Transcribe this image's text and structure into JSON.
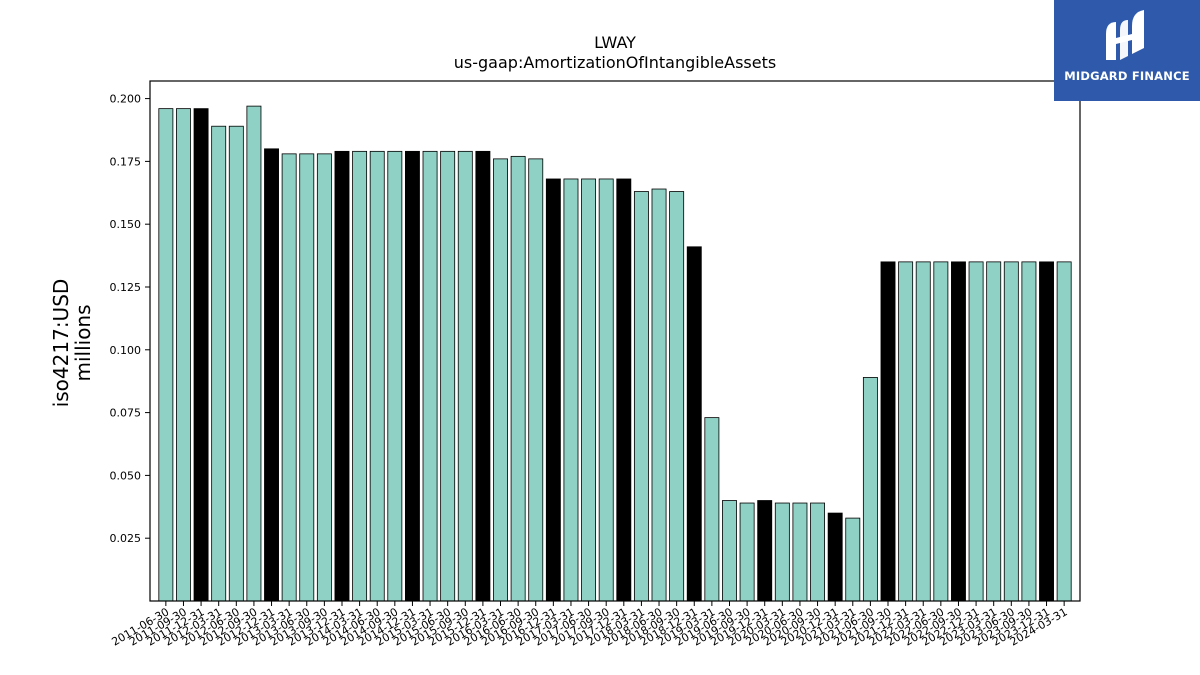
{
  "brand": {
    "name": "MIDGARD FINANCE",
    "background": "#2f5aab"
  },
  "chart_data": {
    "type": "bar",
    "title": "LWAY",
    "subtitle": "us-gaap:AmortizationOfIntangibleAssets",
    "ylabel_line1": "iso4217:USD",
    "ylabel_line2": "millions",
    "xlabel": "",
    "ylim": [
      0,
      0.207
    ],
    "yticks": [
      0.025,
      0.05,
      0.075,
      0.1,
      0.125,
      0.15,
      0.175,
      0.2
    ],
    "grid": false,
    "legend": "none",
    "colors": {
      "default": "#8fd1c4",
      "highlight": "#000000",
      "edge": "#000000"
    },
    "categories": [
      "2011-06-30",
      "2011-09-30",
      "2011-12-31",
      "2012-03-31",
      "2012-06-30",
      "2012-09-30",
      "2012-12-31",
      "2013-03-31",
      "2013-06-30",
      "2013-09-30",
      "2013-12-31",
      "2014-03-31",
      "2014-06-30",
      "2014-09-30",
      "2014-12-31",
      "2015-03-31",
      "2015-06-30",
      "2015-09-30",
      "2015-12-31",
      "2016-03-31",
      "2016-06-30",
      "2016-09-30",
      "2016-12-31",
      "2017-03-31",
      "2017-06-30",
      "2017-09-30",
      "2017-12-31",
      "2018-03-31",
      "2018-06-30",
      "2018-09-30",
      "2018-12-31",
      "2019-03-31",
      "2019-06-30",
      "2019-09-30",
      "2019-12-31",
      "2020-03-31",
      "2020-06-30",
      "2020-09-30",
      "2020-12-31",
      "2021-03-31",
      "2021-06-30",
      "2021-09-30",
      "2021-12-31",
      "2022-03-31",
      "2022-06-30",
      "2022-09-30",
      "2022-12-31",
      "2023-03-31",
      "2023-06-30",
      "2023-09-30",
      "2023-12-31",
      "2024-03-31"
    ],
    "values": [
      0.196,
      0.196,
      0.196,
      0.189,
      0.189,
      0.197,
      0.18,
      0.178,
      0.178,
      0.178,
      0.179,
      0.179,
      0.179,
      0.179,
      0.179,
      0.179,
      0.179,
      0.179,
      0.179,
      0.176,
      0.177,
      0.176,
      0.168,
      0.168,
      0.168,
      0.168,
      0.168,
      0.163,
      0.164,
      0.163,
      0.141,
      0.073,
      0.04,
      0.039,
      0.04,
      0.039,
      0.039,
      0.039,
      0.035,
      0.033,
      0.089,
      0.135,
      0.135,
      0.135,
      0.135,
      0.135,
      0.135,
      0.135,
      0.135,
      0.135,
      0.135,
      0.135
    ],
    "highlighted": [
      false,
      false,
      true,
      false,
      false,
      false,
      true,
      false,
      false,
      false,
      true,
      false,
      false,
      false,
      true,
      false,
      false,
      false,
      true,
      false,
      false,
      false,
      true,
      false,
      false,
      false,
      true,
      false,
      false,
      false,
      true,
      false,
      false,
      false,
      true,
      false,
      false,
      false,
      true,
      false,
      false,
      true,
      false,
      false,
      false,
      true,
      false,
      false,
      false,
      false,
      true,
      false
    ]
  }
}
